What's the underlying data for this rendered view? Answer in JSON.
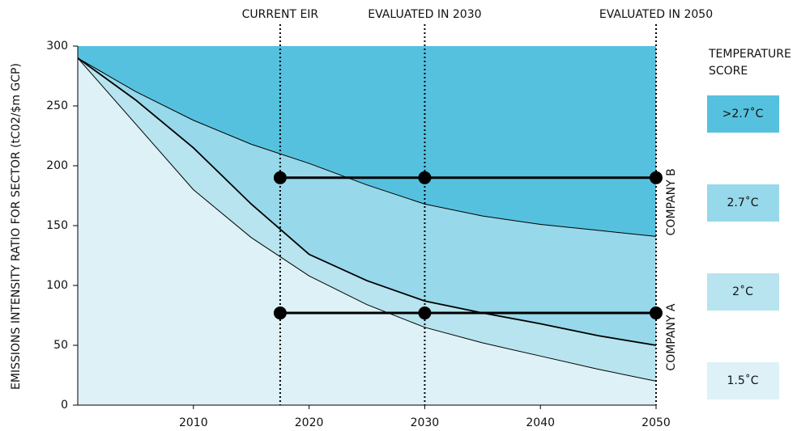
{
  "chart_data": {
    "type": "area",
    "ylabel": "EMISSIONS INTENSITY RATIO FOR SECTOR (tC02/$m GCP)",
    "x": [
      2000,
      2005,
      2010,
      2015,
      2020,
      2025,
      2030,
      2035,
      2040,
      2045,
      2050
    ],
    "top_zone": {
      "name": ">2.7˚C",
      "color": "#56c1de"
    },
    "series": [
      {
        "name": "2.7˚C",
        "color": "#97d8ea",
        "values": [
          290,
          262,
          238,
          218,
          202,
          184,
          168,
          158,
          151,
          146,
          141
        ]
      },
      {
        "name": "2˚C",
        "color": "#b7e4ee",
        "values": [
          290,
          255,
          215,
          168,
          126,
          104,
          87,
          77,
          68,
          58,
          50
        ]
      },
      {
        "name": "1.5˚C",
        "color": "#ddf1f7",
        "values": [
          290,
          235,
          180,
          140,
          108,
          84,
          65,
          52,
          41,
          30,
          20
        ]
      }
    ],
    "legend_title": "TEMPERATURE SCORE",
    "markers": [
      {
        "label": "CURRENT EIR",
        "x": 2017.5
      },
      {
        "label": "EVALUATED IN 2030",
        "x": 2030
      },
      {
        "label": "EVALUATED IN 2050",
        "x": 2050
      }
    ],
    "companies": [
      {
        "name": "COMPANY B",
        "value": 190
      },
      {
        "name": "COMPANY A",
        "value": 77
      }
    ],
    "xlim": [
      2000,
      2050
    ],
    "xticks": [
      2010,
      2020,
      2030,
      2040,
      2050
    ],
    "ylim": [
      0,
      300
    ],
    "yticks": [
      0,
      50,
      100,
      150,
      200,
      250,
      300
    ]
  }
}
